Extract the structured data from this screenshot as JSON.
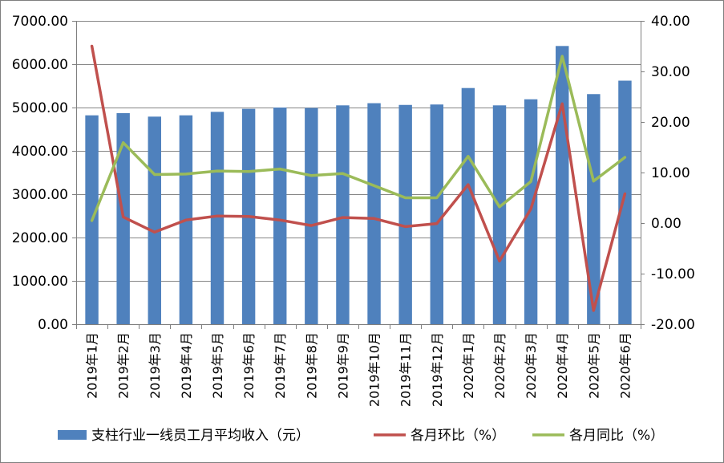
{
  "chart_data": {
    "type": "bar",
    "categories": [
      "2019年1月",
      "2019年2月",
      "2019年3月",
      "2019年4月",
      "2019年5月",
      "2019年6月",
      "2019年7月",
      "2019年8月",
      "2019年9月",
      "2019年10月",
      "2019年11月",
      "2019年12月",
      "2020年1月",
      "2020年2月",
      "2020年3月",
      "2020年4月",
      "2020年5月",
      "2020年6月"
    ],
    "series": [
      {
        "name": "支柱行业一线员工月平均收入（元）",
        "kind": "bar",
        "axis": "left",
        "color": "#4f81bd",
        "values": [
          4820,
          4870,
          4790,
          4820,
          4900,
          4970,
          5000,
          4990,
          5050,
          5100,
          5060,
          5070,
          5450,
          5050,
          5190,
          6420,
          5310,
          5620
        ]
      },
      {
        "name": "各月环比（%）",
        "kind": "line",
        "axis": "right",
        "color": "#c0504d",
        "values": [
          35.0,
          1.2,
          -1.8,
          0.6,
          1.4,
          1.3,
          0.6,
          -0.5,
          1.1,
          0.9,
          -0.7,
          -0.1,
          7.6,
          -7.5,
          2.8,
          23.6,
          -17.3,
          5.8
        ]
      },
      {
        "name": "各月同比（%）",
        "kind": "line",
        "axis": "right",
        "color": "#9bbb59",
        "values": [
          0.5,
          15.9,
          9.6,
          9.7,
          10.3,
          10.2,
          10.7,
          9.4,
          9.8,
          7.4,
          5.0,
          5.0,
          13.2,
          3.2,
          8.2,
          33.0,
          8.3,
          13.0
        ]
      }
    ],
    "y_left": {
      "ylim": [
        0,
        7000
      ],
      "ticks": [
        "0.00",
        "1000.00",
        "2000.00",
        "3000.00",
        "4000.00",
        "5000.00",
        "6000.00",
        "7000.00"
      ]
    },
    "y_right": {
      "ylim": [
        -20,
        40
      ],
      "ticks": [
        "-20.00",
        "-10.00",
        "0.00",
        "10.00",
        "20.00",
        "30.00",
        "40.00"
      ]
    },
    "title": "",
    "xlabel": "",
    "ylabel": "",
    "grid": true,
    "legend_position": "bottom"
  }
}
